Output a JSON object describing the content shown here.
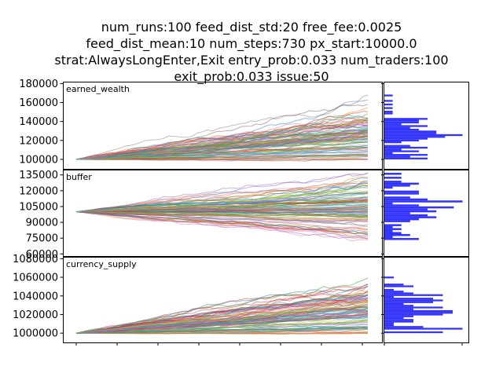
{
  "title_lines": [
    "num_runs:100  feed_dist_std:20  free_fee:0.0025",
    "feed_dist_mean:10  num_steps:730  px_start:10000.0",
    "strat:AlwaysLongEnter,Exit  entry_prob:0.033  num_traders:100",
    "exit_prob:0.033  issue:50"
  ],
  "colors": {
    "line_palette": [
      "#1f77b4",
      "#ff7f0e",
      "#2ca02c",
      "#d62728",
      "#9467bd",
      "#8c564b",
      "#e377c2",
      "#7f7f7f",
      "#bcbd22",
      "#17becf"
    ],
    "histogram": "#3333ff"
  },
  "chart_data": [
    {
      "type": "line",
      "label": "earned_wealth",
      "x_range": [
        0,
        730
      ],
      "ylim": [
        90000,
        182000
      ],
      "yticks": [
        100000,
        120000,
        140000,
        160000,
        180000
      ],
      "ytick_labels": [
        "100000",
        "120000",
        "140000",
        "160000",
        "180000"
      ],
      "start_value": 100000,
      "num_series": 100,
      "final_range": [
        100000,
        176000
      ],
      "final_center": 124000,
      "final_spread": 16000,
      "histogram_range": [
        100000,
        176000
      ]
    },
    {
      "type": "line",
      "label": "buffer",
      "x_range": [
        0,
        730
      ],
      "ylim": [
        58000,
        140000
      ],
      "yticks": [
        60000,
        75000,
        90000,
        105000,
        120000,
        135000
      ],
      "ytick_labels": [
        "60000",
        "75000",
        "90000",
        "105000",
        "120000",
        "135000"
      ],
      "start_value": 100000,
      "num_series": 100,
      "final_range": [
        62000,
        137000
      ],
      "final_center": 100000,
      "final_spread": 16000,
      "histogram_range": [
        62000,
        137000
      ]
    },
    {
      "type": "line",
      "label": "currency_supply",
      "x_range": [
        0,
        730
      ],
      "ylim": [
        990000,
        1082000
      ],
      "yticks": [
        1000000,
        1020000,
        1040000,
        1060000,
        1080000
      ],
      "ytick_labels": [
        "1000000",
        "1020000",
        "1040000",
        "1060000",
        "1080000"
      ],
      "start_value": 1000000,
      "num_series": 100,
      "final_range": [
        1000000,
        1076000
      ],
      "final_center": 1024000,
      "final_spread": 16000,
      "histogram_range": [
        1000000,
        1076000
      ]
    }
  ]
}
